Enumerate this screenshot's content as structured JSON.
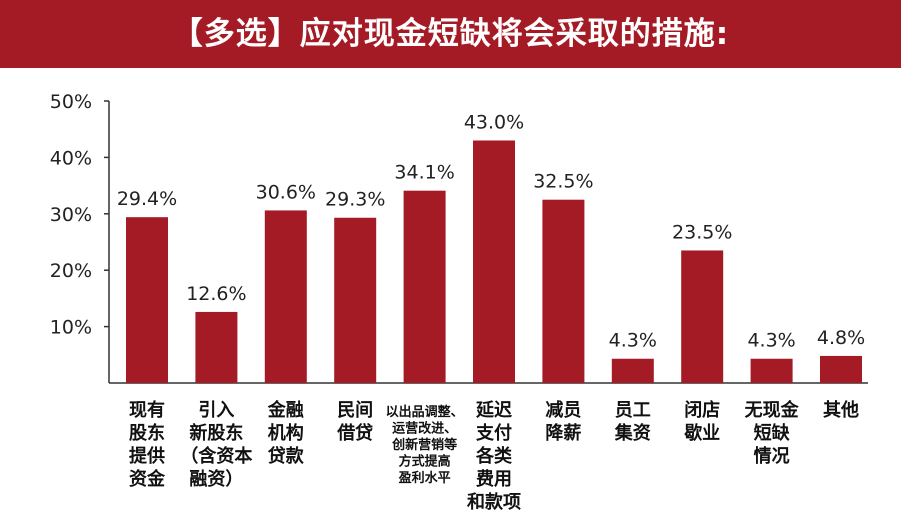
{
  "title": "【多选】应对现金短缺将会采取的措施:",
  "colors": {
    "header": "#a51b25",
    "bar": "#a51b25",
    "axis": "#333333",
    "text": "#222222"
  },
  "chart_data": {
    "type": "bar",
    "title": "【多选】应对现金短缺将会采取的措施:",
    "categories": [
      "现有股东提供资金",
      "引入新股东（含资本融资）",
      "金融机构贷款",
      "民间借贷",
      "以出品调整、运营改进、创新营销等方式提高盈利水平",
      "延迟支付各类费用和款项",
      "减员降薪",
      "员工集资",
      "闭店歇业",
      "无现金短缺情况",
      "其他"
    ],
    "category_lines": [
      [
        "现有",
        "股东",
        "提供",
        "资金"
      ],
      [
        "引入",
        "新股东",
        "（含资本",
        "融资）"
      ],
      [
        "金融",
        "机构",
        "贷款"
      ],
      [
        "民间",
        "借贷"
      ],
      [
        "以出品调整、",
        "运营改进、",
        "创新营销等",
        "方式提高",
        "盈利水平"
      ],
      [
        "延迟",
        "支付",
        "各类",
        "费用",
        "和款项"
      ],
      [
        "减员",
        "降薪"
      ],
      [
        "员工",
        "集资"
      ],
      [
        "闭店",
        "歇业"
      ],
      [
        "无现金",
        "短缺",
        "情况"
      ],
      [
        "其他"
      ]
    ],
    "values": [
      29.4,
      12.6,
      30.6,
      29.3,
      34.1,
      43.0,
      32.5,
      4.3,
      23.5,
      4.3,
      4.8
    ],
    "value_labels": [
      "29.4%",
      "12.6%",
      "30.6%",
      "29.3%",
      "34.1%",
      "43.0%",
      "32.5%",
      "4.3%",
      "23.5%",
      "4.3%",
      "4.8%"
    ],
    "yticks": [
      "10%",
      "20%",
      "30%",
      "40%",
      "50%"
    ],
    "ytick_values": [
      10,
      20,
      30,
      40,
      50
    ],
    "ylim": [
      0,
      50
    ],
    "grid": false,
    "legend": "none"
  }
}
